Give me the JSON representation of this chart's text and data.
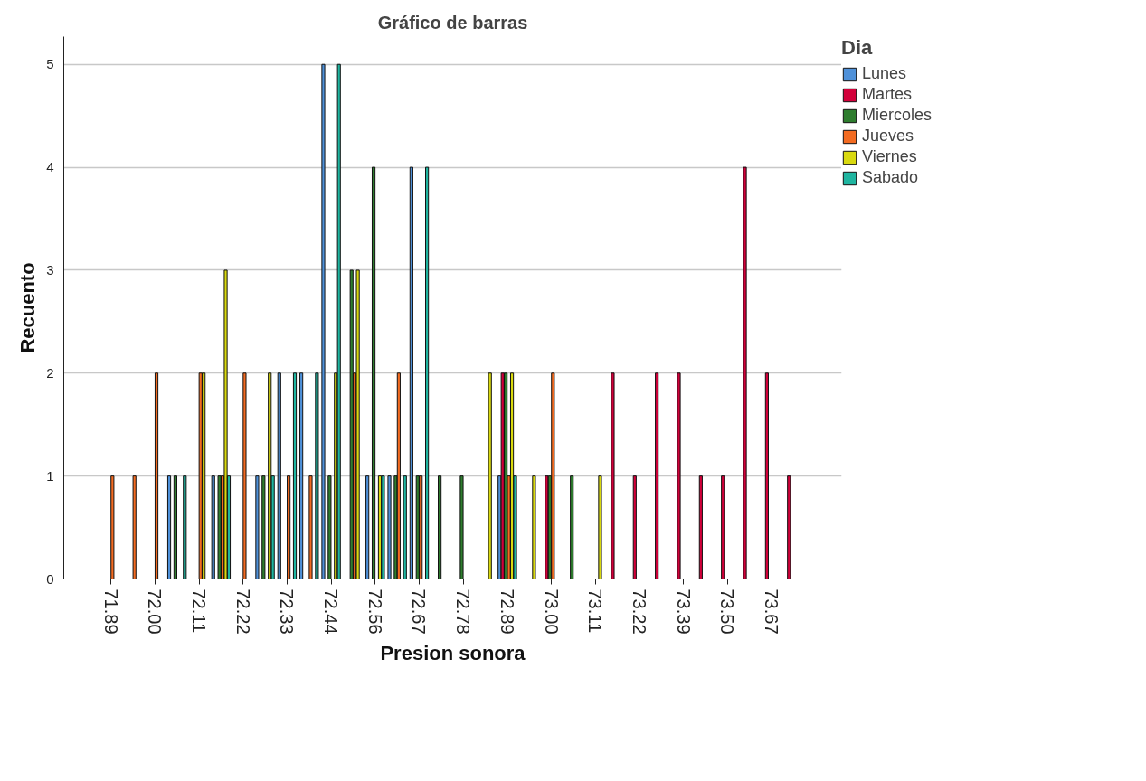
{
  "chart_data": {
    "type": "bar",
    "title": "Gráfico de barras",
    "xlabel": "Presion sonora",
    "ylabel": "Recuento",
    "legend_title": "Dia",
    "categories": [
      "71.89",
      null,
      "72.00",
      null,
      "72.11",
      null,
      "72.22",
      null,
      "72.33",
      null,
      "72.44",
      null,
      "72.56",
      null,
      "72.67",
      null,
      "72.78",
      null,
      "72.89",
      null,
      "73.00",
      null,
      "73.11",
      null,
      "73.22",
      null,
      "73.39",
      null,
      "73.50",
      null,
      "73.67",
      null
    ],
    "series": [
      {
        "name": "Lunes",
        "color": "#4f91d9",
        "values": [
          null,
          null,
          null,
          1,
          null,
          1,
          null,
          1,
          2,
          2,
          5,
          null,
          1,
          1,
          4,
          null,
          null,
          null,
          1,
          null,
          null,
          null,
          null,
          null,
          null,
          null,
          null,
          null,
          null,
          null,
          null,
          null
        ]
      },
      {
        "name": "Martes",
        "color": "#d2003a",
        "values": [
          null,
          null,
          null,
          null,
          null,
          null,
          null,
          null,
          null,
          null,
          null,
          null,
          null,
          null,
          null,
          null,
          null,
          null,
          2,
          null,
          1,
          null,
          null,
          2,
          1,
          2,
          2,
          1,
          1,
          4,
          2,
          1
        ]
      },
      {
        "name": "Miercoles",
        "color": "#2e7d2e",
        "values": [
          null,
          null,
          null,
          1,
          null,
          1,
          null,
          1,
          null,
          null,
          1,
          3,
          4,
          1,
          1,
          1,
          1,
          null,
          2,
          null,
          1,
          1,
          null,
          null,
          null,
          null,
          null,
          null,
          null,
          null,
          null,
          null
        ]
      },
      {
        "name": "Jueves",
        "color": "#f36b21",
        "values": [
          1,
          1,
          2,
          null,
          2,
          1,
          2,
          null,
          1,
          1,
          null,
          2,
          null,
          2,
          1,
          null,
          null,
          null,
          1,
          null,
          2,
          null,
          null,
          null,
          null,
          null,
          null,
          null,
          null,
          null,
          null,
          null
        ]
      },
      {
        "name": "Viernes",
        "color": "#d9d90f",
        "values": [
          null,
          null,
          null,
          null,
          2,
          3,
          null,
          2,
          null,
          null,
          2,
          3,
          1,
          null,
          null,
          null,
          null,
          2,
          2,
          1,
          null,
          null,
          1,
          null,
          null,
          null,
          null,
          null,
          null,
          null,
          null,
          null
        ]
      },
      {
        "name": "Sabado",
        "color": "#1fb5a0",
        "values": [
          null,
          null,
          null,
          1,
          null,
          1,
          null,
          1,
          2,
          2,
          5,
          null,
          1,
          1,
          4,
          null,
          null,
          null,
          1,
          null,
          null,
          null,
          null,
          null,
          null,
          null,
          null,
          null,
          null,
          null,
          null,
          null
        ]
      }
    ],
    "ylim": [
      0,
      5.27
    ],
    "yticks": [
      0,
      1,
      2,
      3,
      4,
      5
    ],
    "grid": "y",
    "legend": "right"
  }
}
